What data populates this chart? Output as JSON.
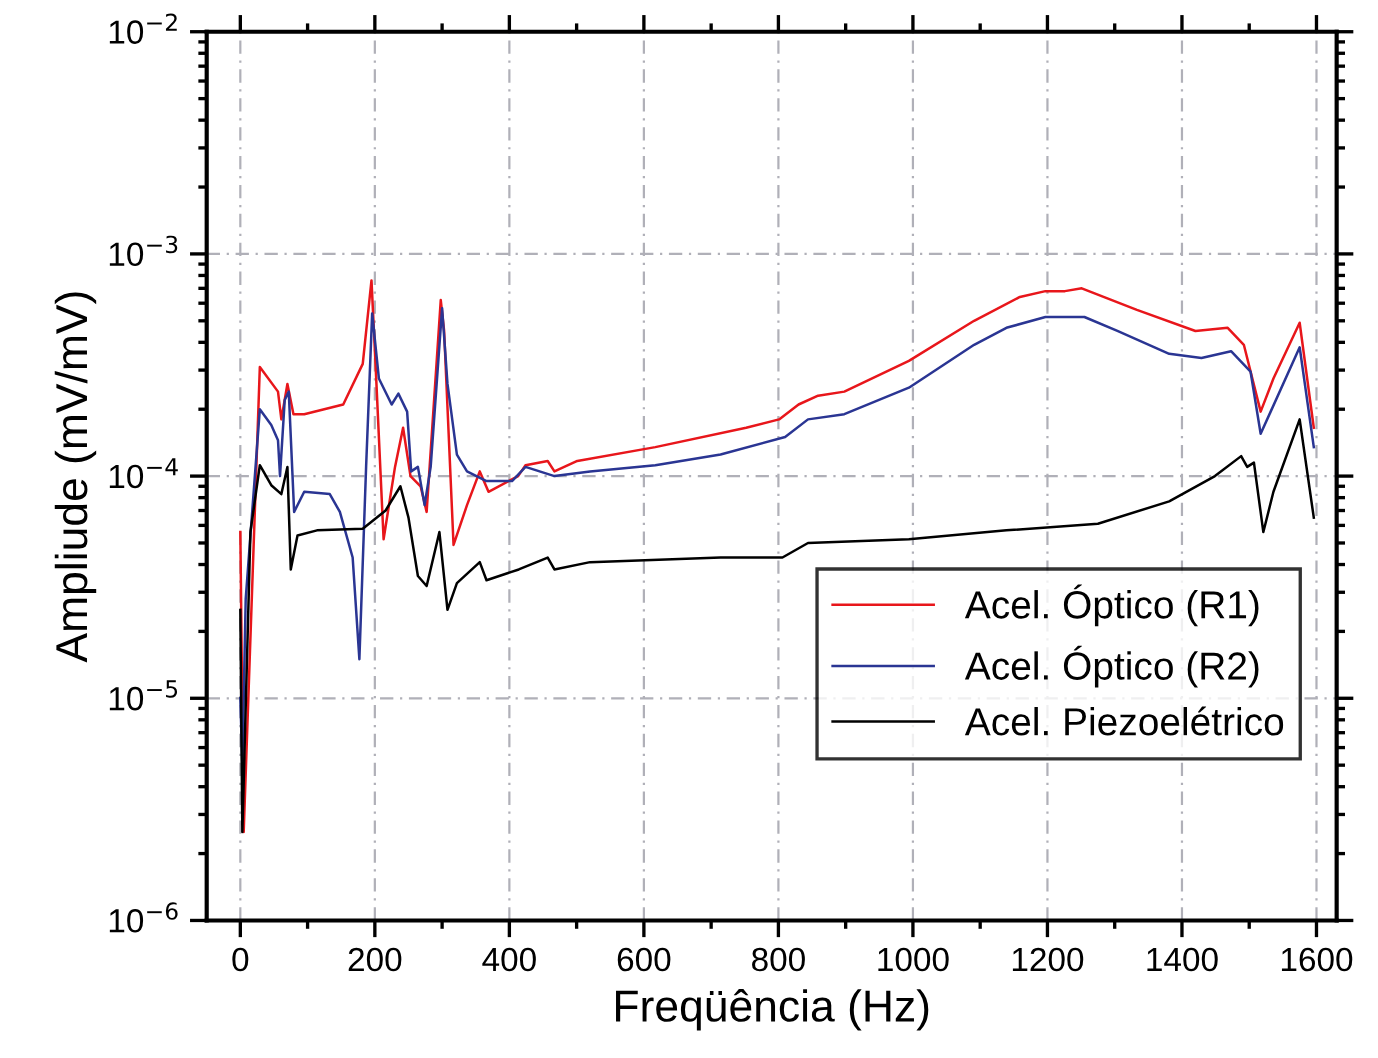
{
  "chart_data": {
    "type": "line",
    "xlabel": "Freqüência (Hz)",
    "ylabel": "Ampliude (mV/mV)",
    "log": "y",
    "grid": true,
    "legend": "bottom right",
    "line_style": "solid",
    "marker": "none",
    "xlim": [
      -50,
      1630
    ],
    "xticks": [
      0,
      200,
      400,
      600,
      800,
      1000,
      1200,
      1400,
      1600
    ],
    "ylim": [
      1e-06,
      0.01
    ],
    "yticks": [
      {
        "value": 1e-06,
        "label": "10$^{−6}$"
      },
      {
        "value": 1e-05,
        "label": "10$^{−5}$"
      },
      {
        "value": 0.0001,
        "label": "10$^{−4}$"
      },
      {
        "value": 0.001,
        "label": "10$^{−3}$"
      },
      {
        "value": 0.01,
        "label": "10$^{−2}$"
      }
    ],
    "series": [
      {
        "name": "Acel. Óptico (R1)",
        "color": "#e8161b",
        "x": [
          0,
          5,
          29,
          56,
          61,
          70,
          79,
          95,
          153,
          182,
          195,
          201,
          213,
          230,
          242,
          253,
          268,
          277,
          298,
          303,
          317,
          337,
          356,
          369,
          413,
          424,
          457,
          467,
          501,
          617,
          752,
          801,
          830,
          859,
          898,
          994,
          1091,
          1159,
          1197,
          1226,
          1251,
          1333,
          1420,
          1468,
          1492,
          1517,
          1536,
          1575,
          1596
        ],
        "values": [
          5.6e-05,
          2.5e-06,
          0.00031,
          0.00024,
          0.00018,
          0.00026,
          0.00019,
          0.00019,
          0.00021,
          0.00032,
          0.00076,
          0.00032,
          5.2e-05,
          0.00011,
          0.000165,
          0.0001,
          9e-05,
          6.9e-05,
          0.00062,
          0.00045,
          4.9e-05,
          7.4e-05,
          0.000105,
          8.5e-05,
          0.0001,
          0.000112,
          0.000117,
          0.000105,
          0.000117,
          0.000135,
          0.000165,
          0.00018,
          0.00021,
          0.00023,
          0.00024,
          0.00033,
          0.0005,
          0.00064,
          0.00068,
          0.00068,
          0.0007,
          0.00056,
          0.00045,
          0.000465,
          0.00039,
          0.000195,
          0.000275,
          0.00049,
          0.000165
        ]
      },
      {
        "name": "Acel. Óptico (R2)",
        "color": "#2a3593",
        "x": [
          0,
          3,
          8,
          29,
          46,
          56,
          59,
          66,
          72,
          80,
          95,
          133,
          148,
          167,
          177,
          187,
          196,
          206,
          225,
          235,
          248,
          254,
          264,
          274,
          283,
          300,
          308,
          322,
          337,
          366,
          404,
          424,
          467,
          520,
          617,
          714,
          810,
          844,
          898,
          994,
          1091,
          1139,
          1197,
          1255,
          1304,
          1381,
          1429,
          1473,
          1502,
          1517,
          1575,
          1596
        ],
        "values": [
          1e-05,
          5e-06,
          2.8e-05,
          0.0002,
          0.00017,
          0.000145,
          0.0001,
          0.00022,
          0.00024,
          6.9e-05,
          8.5e-05,
          8.3e-05,
          6.9e-05,
          4.3e-05,
          1.5e-05,
          0.00011,
          0.00054,
          0.000275,
          0.00021,
          0.000235,
          0.000195,
          0.000105,
          0.00011,
          7.4e-05,
          0.00011,
          0.00057,
          0.00026,
          0.000125,
          0.000105,
          9.5e-05,
          9.5e-05,
          0.00011,
          0.0001,
          0.000105,
          0.000112,
          0.000125,
          0.00015,
          0.00018,
          0.00019,
          0.00025,
          0.00039,
          0.000465,
          0.00052,
          0.00052,
          0.00045,
          0.000355,
          0.00034,
          0.000365,
          0.000295,
          0.000155,
          0.00038,
          0.000135
        ]
      },
      {
        "name": "Acel. Piezoelétrico",
        "color": "#000000",
        "x": [
          0,
          3,
          15,
          29,
          46,
          61,
          70,
          75,
          85,
          114,
          182,
          216,
          238,
          250,
          264,
          277,
          296,
          308,
          322,
          356,
          366,
          414,
          457,
          467,
          520,
          714,
          806,
          844,
          994,
          1139,
          1275,
          1381,
          1449,
          1488,
          1497,
          1507,
          1521,
          1536,
          1575,
          1596
        ],
        "values": [
          2.5e-05,
          2.5e-06,
          5.6e-05,
          0.000112,
          9.1e-05,
          8.3e-05,
          0.00011,
          3.8e-05,
          5.4e-05,
          5.7e-05,
          5.8e-05,
          7e-05,
          9e-05,
          6.5e-05,
          3.55e-05,
          3.2e-05,
          5.6e-05,
          2.5e-05,
          3.3e-05,
          4.1e-05,
          3.4e-05,
          3.8e-05,
          4.3e-05,
          3.8e-05,
          4.1e-05,
          4.3e-05,
          4.3e-05,
          5e-05,
          5.2e-05,
          5.7e-05,
          6.1e-05,
          7.7e-05,
          0.0001,
          0.000123,
          0.00011,
          0.000115,
          5.6e-05,
          8.5e-05,
          0.00018,
          6.5e-05
        ]
      }
    ]
  }
}
